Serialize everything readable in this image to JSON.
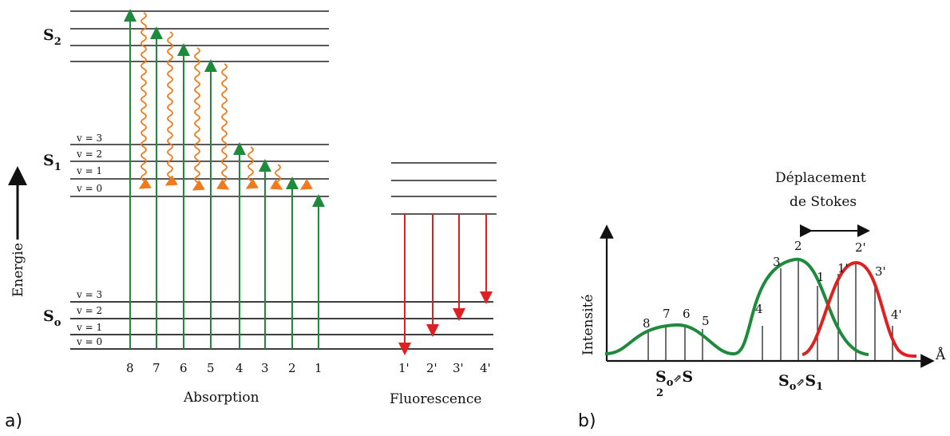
{
  "panel_a": {
    "label": "a)",
    "energy_axis_label": "Energie",
    "states": {
      "s2": {
        "main": "S",
        "sub": "2"
      },
      "s1": {
        "main": "S",
        "sub": "1"
      },
      "s0": {
        "main": "S",
        "sub": "o"
      }
    },
    "s1_levels": [
      "v = 3",
      "v = 2",
      "v = 1",
      "v = 0"
    ],
    "s0_levels": [
      "v = 3",
      "v = 2",
      "v = 1",
      "v = 0"
    ],
    "absorption_labels": [
      "8",
      "7",
      "6",
      "5",
      "4",
      "3",
      "2",
      "1"
    ],
    "fluorescence_labels": [
      "1'",
      "2'",
      "3'",
      "4'"
    ],
    "absorption_caption": "Absorption",
    "fluorescence_caption": "Fluorescence",
    "colors": {
      "absorption": "#1e8a3c",
      "relaxation": "#f07a1c",
      "fluorescence": "#e02020"
    }
  },
  "panel_b": {
    "label": "b)",
    "y_axis_label": "Intensité",
    "x_axis_label": "Å",
    "stokes_line1": "Déplacement",
    "stokes_line2": "de Stokes",
    "absorption_peaks_s1": [
      "3",
      "2",
      "1",
      "4"
    ],
    "emission_peaks": [
      "1'",
      "2'",
      "3'",
      "4'"
    ],
    "absorption_peaks_s2": [
      "8",
      "7",
      "6",
      "5"
    ],
    "transition_s2": {
      "main": "S",
      "sub_o": "o",
      "glyph": "⇗",
      "end": "S",
      "sub_end": "2"
    },
    "transition_s1": {
      "main": "S",
      "sub_o": "o",
      "glyph": "⇗",
      "end": "S",
      "sub_end": "1"
    },
    "colors": {
      "absorption": "#1e8a3c",
      "emission": "#e02020"
    }
  }
}
